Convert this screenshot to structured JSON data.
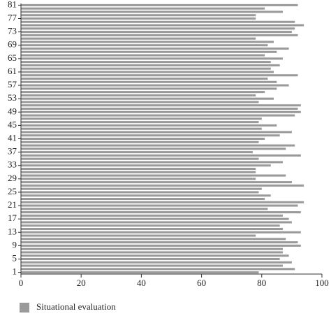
{
  "chart_data": {
    "type": "barh",
    "categories": [
      "1",
      null,
      null,
      null,
      "5",
      null,
      null,
      null,
      "9",
      null,
      null,
      null,
      "13",
      null,
      null,
      null,
      "17",
      null,
      null,
      null,
      "21",
      null,
      null,
      null,
      "25",
      null,
      null,
      null,
      "29",
      null,
      null,
      null,
      "33",
      null,
      null,
      null,
      "37",
      null,
      null,
      null,
      "41",
      null,
      null,
      null,
      "45",
      null,
      null,
      null,
      "49",
      null,
      null,
      null,
      "53",
      null,
      null,
      null,
      "57",
      null,
      null,
      null,
      "61",
      null,
      null,
      null,
      "65",
      null,
      null,
      null,
      "69",
      null,
      null,
      null,
      "73",
      null,
      null,
      null,
      "77",
      null,
      null,
      null,
      "81"
    ],
    "series": [
      {
        "name": "Situational evaluation",
        "color": "#9a9a9a",
        "values": [
          79,
          91,
          87,
          90,
          86,
          89,
          87,
          87,
          93,
          92,
          88,
          78,
          93,
          87,
          86,
          90,
          89,
          87,
          93,
          82,
          92,
          94,
          81,
          83,
          79,
          80,
          94,
          90,
          78,
          88,
          78,
          78,
          83,
          87,
          79,
          93,
          77,
          88,
          91,
          79,
          81,
          86,
          90,
          80,
          85,
          79,
          80,
          91,
          93,
          92,
          93,
          79,
          84,
          78,
          81,
          85,
          89,
          85,
          82,
          92,
          84,
          83,
          86,
          83,
          87,
          81,
          85,
          89,
          82,
          84,
          78,
          92,
          90,
          91,
          94,
          91,
          78,
          78,
          87,
          81,
          92
        ]
      }
    ],
    "xlim": [
      0,
      100
    ],
    "xticks": [
      0,
      20,
      40,
      60,
      80,
      100
    ],
    "legend": "bottom-left"
  }
}
